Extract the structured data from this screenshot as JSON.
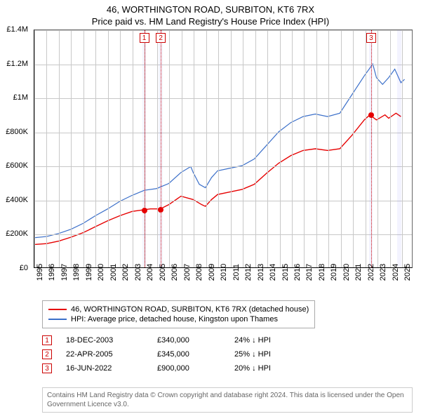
{
  "titles": {
    "line1": "46, WORTHINGTON ROAD, SURBITON, KT6 7RX",
    "line2": "Price paid vs. HM Land Registry's House Price Index (HPI)"
  },
  "chart": {
    "type": "line",
    "background_color": "#ffffff",
    "grid_color": "#c8c8c8",
    "axis_color": "#000000",
    "x": {
      "min": 1995,
      "max": 2025.9,
      "tick_step": 1,
      "labels": [
        "1995",
        "1996",
        "1997",
        "1998",
        "1999",
        "2000",
        "2001",
        "2002",
        "2003",
        "2004",
        "2005",
        "2006",
        "2007",
        "2008",
        "2009",
        "2010",
        "2011",
        "2012",
        "2013",
        "2014",
        "2015",
        "2016",
        "2017",
        "2018",
        "2019",
        "2020",
        "2021",
        "2022",
        "2023",
        "2024",
        "2025"
      ],
      "label_fontsize": 11
    },
    "y": {
      "min": 0,
      "max": 1400000,
      "tick_step": 200000,
      "labels": [
        "£0",
        "£200K",
        "£400K",
        "£600K",
        "£800K",
        "£1M",
        "£1.2M",
        "£1.4M"
      ],
      "label_fontsize": 11
    },
    "series": [
      {
        "name": "property",
        "label": "46, WORTHINGTON ROAD, SURBITON, KT6 7RX (detached house)",
        "color": "#e60000",
        "line_width": 1.4,
        "points": [
          [
            1995,
            135000
          ],
          [
            1996,
            140000
          ],
          [
            1997,
            155000
          ],
          [
            1998,
            178000
          ],
          [
            1999,
            205000
          ],
          [
            2000,
            240000
          ],
          [
            2001,
            275000
          ],
          [
            2002,
            305000
          ],
          [
            2003,
            330000
          ],
          [
            2003.96,
            340000
          ],
          [
            2004.5,
            345000
          ],
          [
            2005.31,
            345000
          ],
          [
            2006,
            370000
          ],
          [
            2007,
            420000
          ],
          [
            2008,
            400000
          ],
          [
            2008.7,
            370000
          ],
          [
            2009,
            360000
          ],
          [
            2009.5,
            400000
          ],
          [
            2010,
            430000
          ],
          [
            2011,
            445000
          ],
          [
            2012,
            460000
          ],
          [
            2013,
            490000
          ],
          [
            2014,
            555000
          ],
          [
            2015,
            615000
          ],
          [
            2016,
            660000
          ],
          [
            2017,
            690000
          ],
          [
            2018,
            700000
          ],
          [
            2019,
            690000
          ],
          [
            2020,
            700000
          ],
          [
            2021,
            780000
          ],
          [
            2022,
            870000
          ],
          [
            2022.46,
            900000
          ],
          [
            2023,
            870000
          ],
          [
            2023.7,
            900000
          ],
          [
            2024,
            880000
          ],
          [
            2024.6,
            910000
          ],
          [
            2025,
            890000
          ]
        ]
      },
      {
        "name": "hpi",
        "label": "HPI: Average price, detached house, Kingston upon Thames",
        "color": "#3b6fc9",
        "line_width": 1.2,
        "points": [
          [
            1995,
            175000
          ],
          [
            1996,
            182000
          ],
          [
            1997,
            200000
          ],
          [
            1998,
            225000
          ],
          [
            1999,
            260000
          ],
          [
            2000,
            305000
          ],
          [
            2001,
            345000
          ],
          [
            2002,
            390000
          ],
          [
            2003,
            425000
          ],
          [
            2004,
            455000
          ],
          [
            2005,
            465000
          ],
          [
            2006,
            495000
          ],
          [
            2007,
            560000
          ],
          [
            2007.8,
            595000
          ],
          [
            2008,
            560000
          ],
          [
            2008.5,
            490000
          ],
          [
            2009,
            470000
          ],
          [
            2009.5,
            530000
          ],
          [
            2010,
            570000
          ],
          [
            2011,
            585000
          ],
          [
            2012,
            600000
          ],
          [
            2013,
            640000
          ],
          [
            2014,
            720000
          ],
          [
            2015,
            800000
          ],
          [
            2016,
            855000
          ],
          [
            2017,
            890000
          ],
          [
            2018,
            905000
          ],
          [
            2019,
            890000
          ],
          [
            2020,
            910000
          ],
          [
            2021,
            1020000
          ],
          [
            2022,
            1130000
          ],
          [
            2022.7,
            1200000
          ],
          [
            2023,
            1120000
          ],
          [
            2023.5,
            1080000
          ],
          [
            2024,
            1120000
          ],
          [
            2024.5,
            1170000
          ],
          [
            2025,
            1090000
          ],
          [
            2025.3,
            1110000
          ]
        ]
      }
    ],
    "event_markers": [
      {
        "index": "1",
        "x": 2003.96,
        "y": 340000,
        "band_start": 2003.8,
        "band_end": 2004.1
      },
      {
        "index": "2",
        "x": 2005.31,
        "y": 345000,
        "band_start": 2005.15,
        "band_end": 2005.45
      },
      {
        "index": "3",
        "x": 2022.46,
        "y": 900000,
        "band_start": 2022.3,
        "band_end": 2022.6
      }
    ],
    "extra_bands": [
      {
        "start": 2024.6,
        "end": 2024.9
      }
    ]
  },
  "legend": {
    "border_color": "#aaaaaa",
    "items": [
      {
        "color": "#e60000",
        "label_path": "chart.series.0.label"
      },
      {
        "color": "#3b6fc9",
        "label_path": "chart.series.1.label"
      }
    ]
  },
  "sales": [
    {
      "index": "1",
      "date": "18-DEC-2003",
      "price": "£340,000",
      "hpi_diff": "24% ↓ HPI"
    },
    {
      "index": "2",
      "date": "22-APR-2005",
      "price": "£345,000",
      "hpi_diff": "25% ↓ HPI"
    },
    {
      "index": "3",
      "date": "16-JUN-2022",
      "price": "£900,000",
      "hpi_diff": "20% ↓ HPI"
    }
  ],
  "attribution": "Contains HM Land Registry data © Crown copyright and database right 2024. This data is licensed under the Open Government Licence v3.0."
}
